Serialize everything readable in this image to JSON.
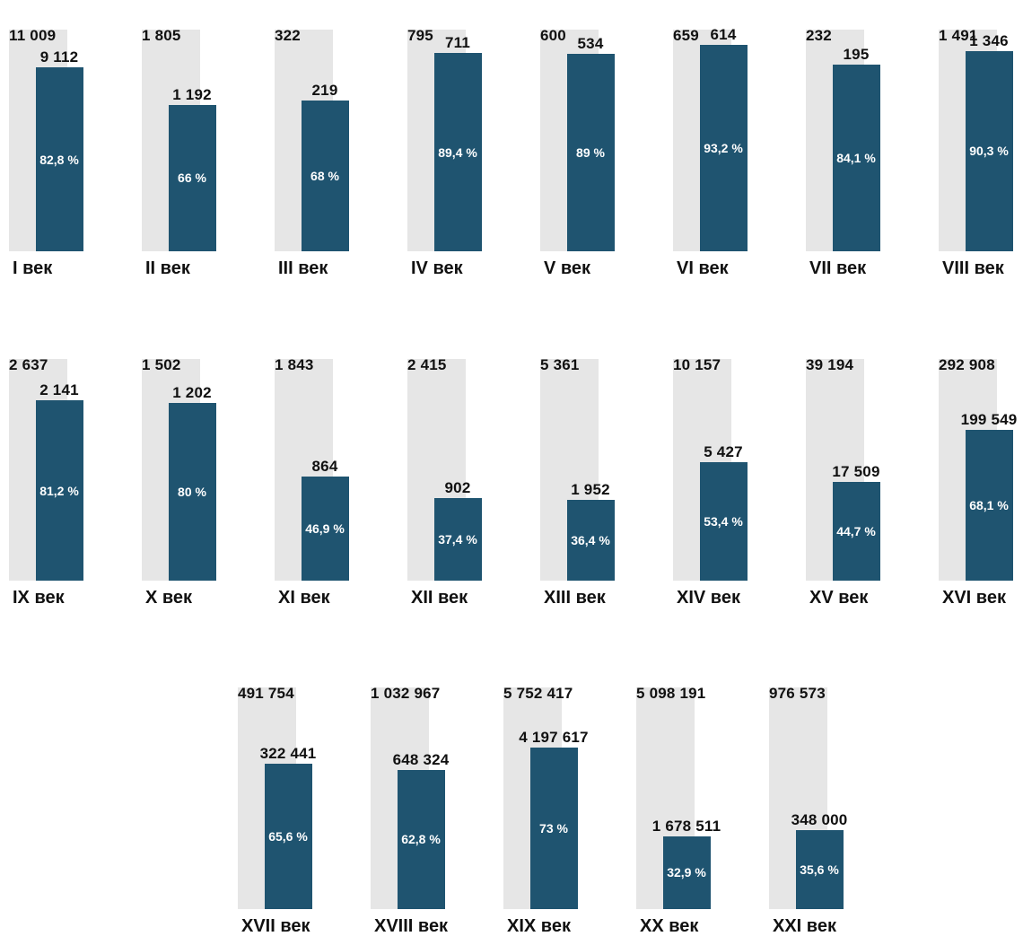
{
  "chart_data": {
    "type": "bar",
    "title": "",
    "categories": [
      "I век",
      "II век",
      "III век",
      "IV век",
      "V век",
      "VI век",
      "VII век",
      "VIII век",
      "IX век",
      "X век",
      "XI век",
      "XII век",
      "XIII век",
      "XIV век",
      "XV век",
      "XVI век",
      "XVII век",
      "XVIII век",
      "XIX век",
      "XX век",
      "XXI век"
    ],
    "series": [
      {
        "values": [
          11009,
          1805,
          322,
          795,
          600,
          659,
          232,
          1491,
          2637,
          1502,
          1843,
          2415,
          5361,
          10157,
          39194,
          292908,
          491754,
          1032967,
          5752417,
          5098191,
          976573
        ]
      },
      {
        "values": [
          9112,
          1192,
          219,
          711,
          534,
          614,
          195,
          1346,
          2141,
          1202,
          864,
          902,
          1952,
          5427,
          17509,
          199549,
          322441,
          648324,
          4197617,
          1678511,
          348000
        ]
      }
    ],
    "total_labels": [
      "11 009",
      "1 805",
      "322",
      "795",
      "600",
      "659",
      "232",
      "1 491",
      "2 637",
      "1 502",
      "1 843",
      "2 415",
      "5 361",
      "10 157",
      "39 194",
      "292 908",
      "491 754",
      "1 032 967",
      "5 752 417",
      "5 098 191",
      "976 573"
    ],
    "value_labels": [
      "9 112",
      "1 192",
      "219",
      "711",
      "534",
      "614",
      "195",
      "1 346",
      "2 141",
      "1 202",
      "864",
      "902",
      "1 952",
      "5 427",
      "17 509",
      "199 549",
      "322 441",
      "648 324",
      "4 197 617",
      "1 678 511",
      "348 000"
    ],
    "percent_labels": [
      "82,8 %",
      "66 %",
      "68 %",
      "89,4 %",
      "89 %",
      "93,2 %",
      "84,1 %",
      "90,3 %",
      "81,2 %",
      "80 %",
      "46,9 %",
      "37,4 %",
      "36,4 %",
      "53,4 %",
      "44,7 %",
      "68,1 %",
      "65,6 %",
      "62,8 %",
      "73 %",
      "32,9 %",
      "35,6 %"
    ],
    "percent_values": [
      82.8,
      66,
      68,
      89.4,
      89,
      93.2,
      84.1,
      90.3,
      81.2,
      80,
      46.9,
      37.4,
      36.4,
      53.4,
      44.7,
      68.1,
      65.6,
      62.8,
      73,
      32.9,
      35.6
    ],
    "grid": false,
    "legend": "none",
    "colors": {
      "total_bar": "#e6e6e6",
      "value_bar": "#1f5470",
      "percent_text": "#ffffff"
    }
  }
}
